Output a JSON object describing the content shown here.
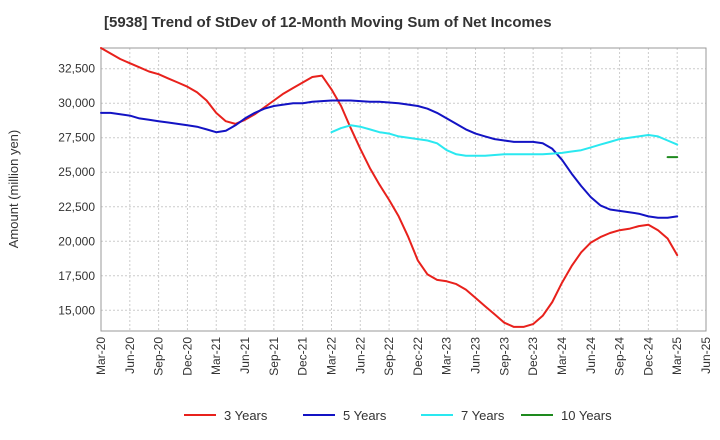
{
  "chart_data": {
    "type": "line",
    "title": "[5938]  Trend of StDev of 12-Month Moving Sum of Net Incomes",
    "ylabel": "Amount (million yen)",
    "xlabel": "",
    "ylim": [
      13500,
      34000
    ],
    "yticks": [
      15000,
      17500,
      20000,
      22500,
      25000,
      27500,
      30000,
      32500
    ],
    "ytick_labels": [
      "15,000",
      "17,500",
      "20,000",
      "22,500",
      "25,000",
      "27,500",
      "30,000",
      "32,500"
    ],
    "x_start": "Mar-20",
    "x_ticks": [
      "Mar-20",
      "Jun-20",
      "Sep-20",
      "Dec-20",
      "Mar-21",
      "Jun-21",
      "Sep-21",
      "Dec-21",
      "Mar-22",
      "Jun-22",
      "Sep-22",
      "Dec-22",
      "Mar-23",
      "Jun-23",
      "Sep-23",
      "Dec-23",
      "Mar-24",
      "Jun-24",
      "Sep-24",
      "Dec-24",
      "Mar-25",
      "Jun-25"
    ],
    "grid": true,
    "legend_position": "bottom",
    "series": [
      {
        "name": "3 Years",
        "color": "#e8211c",
        "x": [
          "Mar-20",
          "Apr-20",
          "May-20",
          "Jun-20",
          "Jul-20",
          "Aug-20",
          "Sep-20",
          "Oct-20",
          "Nov-20",
          "Dec-20",
          "Jan-21",
          "Feb-21",
          "Mar-21",
          "Apr-21",
          "May-21",
          "Jun-21",
          "Jul-21",
          "Aug-21",
          "Sep-21",
          "Oct-21",
          "Nov-21",
          "Dec-21",
          "Jan-22",
          "Feb-22",
          "Mar-22",
          "Apr-22",
          "May-22",
          "Jun-22",
          "Jul-22",
          "Aug-22",
          "Sep-22",
          "Oct-22",
          "Nov-22",
          "Dec-22",
          "Jan-23",
          "Feb-23",
          "Mar-23",
          "Apr-23",
          "May-23",
          "Jun-23",
          "Jul-23",
          "Aug-23",
          "Sep-23",
          "Oct-23",
          "Nov-23",
          "Dec-23",
          "Jan-24",
          "Feb-24",
          "Mar-24",
          "Apr-24",
          "May-24",
          "Jun-24",
          "Jul-24",
          "Aug-24",
          "Sep-24",
          "Oct-24",
          "Nov-24",
          "Dec-24",
          "Jan-25",
          "Feb-25",
          "Mar-25"
        ],
        "values": [
          34000,
          33600,
          33200,
          32900,
          32600,
          32300,
          32100,
          31800,
          31500,
          31200,
          30800,
          30200,
          29300,
          28700,
          28500,
          28800,
          29200,
          29700,
          30200,
          30700,
          31100,
          31500,
          31900,
          32000,
          31000,
          29800,
          28200,
          26700,
          25300,
          24100,
          23000,
          21800,
          20300,
          18600,
          17600,
          17200,
          17100,
          16900,
          16500,
          15900,
          15300,
          14700,
          14100,
          13800,
          13800,
          14000,
          14600,
          15600,
          17000,
          18200,
          19200,
          19900,
          20300,
          20600,
          20800,
          20900,
          21100,
          21200,
          20800,
          20200,
          19000
        ]
      },
      {
        "name": "5 Years",
        "color": "#1313c4",
        "x": [
          "Mar-20",
          "Apr-20",
          "May-20",
          "Jun-20",
          "Jul-20",
          "Aug-20",
          "Sep-20",
          "Oct-20",
          "Nov-20",
          "Dec-20",
          "Jan-21",
          "Feb-21",
          "Mar-21",
          "Apr-21",
          "May-21",
          "Jun-21",
          "Jul-21",
          "Aug-21",
          "Sep-21",
          "Oct-21",
          "Nov-21",
          "Dec-21",
          "Jan-22",
          "Feb-22",
          "Mar-22",
          "Apr-22",
          "May-22",
          "Jun-22",
          "Jul-22",
          "Aug-22",
          "Sep-22",
          "Oct-22",
          "Nov-22",
          "Dec-22",
          "Jan-23",
          "Feb-23",
          "Mar-23",
          "Apr-23",
          "May-23",
          "Jun-23",
          "Jul-23",
          "Aug-23",
          "Sep-23",
          "Oct-23",
          "Nov-23",
          "Dec-23",
          "Jan-24",
          "Feb-24",
          "Mar-24",
          "Apr-24",
          "May-24",
          "Jun-24",
          "Jul-24",
          "Aug-24",
          "Sep-24",
          "Oct-24",
          "Nov-24",
          "Dec-24",
          "Jan-25",
          "Feb-25",
          "Mar-25"
        ],
        "values": [
          29300,
          29300,
          29200,
          29100,
          28900,
          28800,
          28700,
          28600,
          28500,
          28400,
          28300,
          28100,
          27900,
          28000,
          28400,
          28900,
          29300,
          29600,
          29800,
          29900,
          30000,
          30000,
          30100,
          30150,
          30200,
          30200,
          30200,
          30150,
          30100,
          30100,
          30050,
          30000,
          29900,
          29800,
          29600,
          29300,
          28900,
          28500,
          28100,
          27800,
          27600,
          27400,
          27300,
          27200,
          27200,
          27200,
          27100,
          26700,
          25900,
          24900,
          24000,
          23200,
          22600,
          22300,
          22200,
          22100,
          22000,
          21800,
          21700,
          21700,
          21800
        ]
      },
      {
        "name": "7 Years",
        "color": "#2ae8f0",
        "x": [
          "Mar-22",
          "Apr-22",
          "May-22",
          "Jun-22",
          "Jul-22",
          "Aug-22",
          "Sep-22",
          "Oct-22",
          "Nov-22",
          "Dec-22",
          "Jan-23",
          "Feb-23",
          "Mar-23",
          "Apr-23",
          "May-23",
          "Jun-23",
          "Jul-23",
          "Aug-23",
          "Sep-23",
          "Oct-23",
          "Nov-23",
          "Dec-23",
          "Jan-24",
          "Feb-24",
          "Mar-24",
          "Apr-24",
          "May-24",
          "Jun-24",
          "Jul-24",
          "Aug-24",
          "Sep-24",
          "Oct-24",
          "Nov-24",
          "Dec-24",
          "Jan-25",
          "Feb-25",
          "Mar-25"
        ],
        "values": [
          27900,
          28200,
          28400,
          28300,
          28100,
          27900,
          27800,
          27600,
          27500,
          27400,
          27300,
          27100,
          26600,
          26300,
          26200,
          26200,
          26200,
          26250,
          26300,
          26300,
          26300,
          26300,
          26300,
          26350,
          26400,
          26500,
          26600,
          26800,
          27000,
          27200,
          27400,
          27500,
          27600,
          27700,
          27600,
          27300,
          27000
        ]
      },
      {
        "name": "10 Years",
        "color": "#1e8a1e",
        "x": [
          "Feb-25",
          "Mar-25"
        ],
        "values": [
          26100,
          26100
        ]
      }
    ]
  }
}
